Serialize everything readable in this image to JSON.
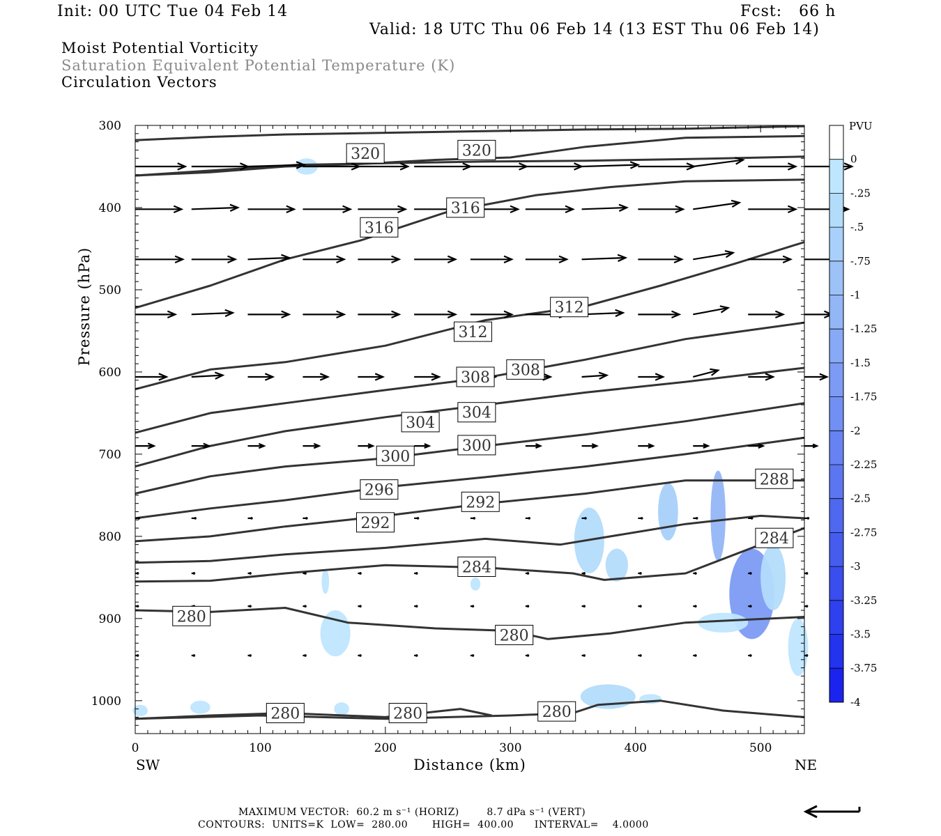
{
  "header": {
    "init": "Init: 00 UTC Tue 04 Feb 14",
    "fcst": "Fcst:   66 h",
    "valid": "Valid: 18 UTC Thu 06 Feb 14 (13 EST Thu 06 Feb 14)",
    "line1": "Moist Potential Vorticity",
    "line2": "Saturation Equivalent Potential Temperature (K)",
    "line3": "Circulation Vectors"
  },
  "footer": {
    "max_vector": "MAXIMUM VECTOR:  60.2 m s⁻¹ (HORIZ)        8.7 dPa s⁻¹ (VERT)",
    "contours": "CONTOURS:  UNITS=K  LOW=  280.00       HIGH=  400.00      INTERVAL=    4.0000"
  },
  "chart_data": {
    "type": "line",
    "title": "",
    "xlabel": "Distance (km)",
    "ylabel": "Pressure (hPa)",
    "xlim": [
      0,
      535
    ],
    "ylim": [
      1040,
      300
    ],
    "x_ticks": [
      0,
      100,
      200,
      300,
      400,
      500
    ],
    "y_ticks": [
      300,
      400,
      500,
      600,
      700,
      800,
      900,
      1000
    ],
    "x_end_labels": {
      "left": "SW",
      "right": "NE"
    },
    "grid": false,
    "colors": {
      "contour": "#333333",
      "vector": "#000000"
    },
    "series": [
      {
        "x": [
          0,
          60,
          120,
          200,
          280,
          360,
          440,
          535
        ],
        "y": [
          318,
          314,
          311,
          309,
          307,
          305,
          304,
          301
        ]
      },
      {
        "x": [
          0,
          60,
          130,
          200,
          280,
          360,
          440,
          535
        ],
        "y": [
          361,
          355,
          348,
          346,
          344,
          343,
          341,
          338
        ]
      },
      {
        "x": [
          0,
          60,
          120,
          180,
          240,
          300,
          360,
          440,
          535
        ],
        "y": [
          361,
          357,
          350,
          347,
          342,
          339,
          326,
          315,
          313
        ]
      },
      {
        "x": [
          0,
          60,
          120,
          180,
          250,
          320,
          380,
          440,
          535
        ],
        "y": [
          522,
          495,
          463,
          440,
          405,
          385,
          375,
          368,
          366
        ]
      },
      {
        "x": [
          0,
          60,
          120,
          200,
          280,
          360,
          420,
          480,
          535
        ],
        "y": [
          621,
          597,
          588,
          568,
          537,
          520,
          495,
          468,
          442
        ]
      },
      {
        "x": [
          0,
          60,
          120,
          200,
          280,
          360,
          440,
          535
        ],
        "y": [
          674,
          650,
          638,
          622,
          607,
          585,
          560,
          540
        ]
      },
      {
        "x": [
          0,
          60,
          120,
          200,
          280,
          360,
          440,
          535
        ],
        "y": [
          715,
          690,
          672,
          655,
          640,
          625,
          612,
          595
        ]
      },
      {
        "x": [
          0,
          60,
          120,
          200,
          280,
          360,
          440,
          535
        ],
        "y": [
          748,
          727,
          715,
          705,
          690,
          676,
          660,
          638
        ]
      },
      {
        "x": [
          0,
          60,
          120,
          200,
          280,
          360,
          440,
          535
        ],
        "y": [
          778,
          766,
          756,
          740,
          728,
          715,
          700,
          680
        ]
      },
      {
        "x": [
          0,
          60,
          120,
          200,
          280,
          360,
          440,
          535
        ],
        "y": [
          806,
          800,
          788,
          775,
          760,
          748,
          732,
          732
        ]
      },
      {
        "x": [
          0,
          60,
          120,
          200,
          280,
          340,
          380,
          440,
          500,
          535
        ],
        "y": [
          832,
          830,
          822,
          814,
          803,
          810,
          800,
          785,
          775,
          778
        ]
      },
      {
        "x": [
          0,
          60,
          120,
          200,
          280,
          350,
          375,
          440,
          500,
          535
        ],
        "y": [
          855,
          854,
          845,
          835,
          838,
          845,
          853,
          845,
          810,
          790
        ]
      },
      {
        "x": [
          0,
          60,
          120,
          170,
          240,
          300,
          330,
          380,
          440,
          535
        ],
        "y": [
          890,
          892,
          887,
          905,
          912,
          915,
          925,
          918,
          905,
          898
        ]
      },
      {
        "x": [
          0,
          60,
          120,
          200,
          260,
          285
        ],
        "y": [
          1022,
          1018,
          1015,
          1020,
          1010,
          1018
        ]
      },
      {
        "x": [
          0,
          100,
          200,
          300,
          350,
          370,
          420,
          470,
          535
        ],
        "y": [
          1022,
          1018,
          1022,
          1018,
          1015,
          1005,
          1000,
          1012,
          1020
        ]
      }
    ],
    "contour_labels": [
      {
        "text": "320",
        "x": 184,
        "y": 334
      },
      {
        "text": "320",
        "x": 273,
        "y": 330
      },
      {
        "text": "316",
        "x": 195,
        "y": 424
      },
      {
        "text": "316",
        "x": 264,
        "y": 400
      },
      {
        "text": "312",
        "x": 270,
        "y": 551
      },
      {
        "text": "312",
        "x": 347,
        "y": 521
      },
      {
        "text": "308",
        "x": 272,
        "y": 606
      },
      {
        "text": "308",
        "x": 312,
        "y": 597
      },
      {
        "text": "304",
        "x": 228,
        "y": 661
      },
      {
        "text": "304",
        "x": 273,
        "y": 649
      },
      {
        "text": "300",
        "x": 208,
        "y": 702
      },
      {
        "text": "300",
        "x": 273,
        "y": 689
      },
      {
        "text": "296",
        "x": 195,
        "y": 743
      },
      {
        "text": "292",
        "x": 192,
        "y": 783
      },
      {
        "text": "292",
        "x": 276,
        "y": 758
      },
      {
        "text": "288",
        "x": 511,
        "y": 730
      },
      {
        "text": "284",
        "x": 273,
        "y": 837
      },
      {
        "text": "284",
        "x": 511,
        "y": 802
      },
      {
        "text": "280",
        "x": 45,
        "y": 897
      },
      {
        "text": "280",
        "x": 303,
        "y": 920
      },
      {
        "text": "280",
        "x": 120,
        "y": 1015
      },
      {
        "text": "280",
        "x": 218,
        "y": 1015
      },
      {
        "text": "280",
        "x": 337,
        "y": 1013
      }
    ],
    "mpv_shading": {
      "legend_label": "PVU",
      "levels": [
        "0",
        "-.25",
        "-.5",
        "-.75",
        "-1",
        "-1.25",
        "-1.5",
        "-1.75",
        "-2",
        "-2.25",
        "-2.5",
        "-2.75",
        "-3",
        "-3.25",
        "-3.5",
        "-3.75",
        "-4"
      ],
      "colors": [
        "#ffffff",
        "#bfe6ff",
        "#b3dcfb",
        "#a8d0fa",
        "#9dc2f8",
        "#93b6f6",
        "#88a9f5",
        "#7d9bf4",
        "#7290f3",
        "#6782f2",
        "#5c76f1",
        "#4f68f0",
        "#455cef",
        "#3a4def",
        "#2f40ee",
        "#2333ee",
        "#1b24ee"
      ],
      "patches": [
        {
          "x": 137,
          "y": 350,
          "rx": 9,
          "ry": 10,
          "level": 1
        },
        {
          "x": 152,
          "y": 855,
          "rx": 3,
          "ry": 15,
          "level": 1
        },
        {
          "x": 160,
          "y": 918,
          "rx": 12,
          "ry": 28,
          "level": 1
        },
        {
          "x": 272,
          "y": 858,
          "rx": 4,
          "ry": 8,
          "level": 1
        },
        {
          "x": 363,
          "y": 805,
          "rx": 12,
          "ry": 40,
          "level": 2
        },
        {
          "x": 385,
          "y": 835,
          "rx": 9,
          "ry": 20,
          "level": 2
        },
        {
          "x": 426,
          "y": 770,
          "rx": 8,
          "ry": 35,
          "level": 3
        },
        {
          "x": 466,
          "y": 775,
          "rx": 6,
          "ry": 55,
          "level": 5
        },
        {
          "x": 493,
          "y": 870,
          "rx": 18,
          "ry": 55,
          "level": 7
        },
        {
          "x": 510,
          "y": 850,
          "rx": 10,
          "ry": 40,
          "level": 2
        },
        {
          "x": 530,
          "y": 935,
          "rx": 8,
          "ry": 35,
          "level": 1
        },
        {
          "x": 470,
          "y": 905,
          "rx": 20,
          "ry": 12,
          "level": 1
        },
        {
          "x": 378,
          "y": 995,
          "rx": 22,
          "ry": 15,
          "level": 2
        },
        {
          "x": 412,
          "y": 998,
          "rx": 9,
          "ry": 6,
          "level": 1
        },
        {
          "x": 52,
          "y": 1008,
          "rx": 8,
          "ry": 8,
          "level": 1
        },
        {
          "x": 4,
          "y": 1012,
          "rx": 6,
          "ry": 7,
          "level": 1
        },
        {
          "x": 165,
          "y": 1010,
          "rx": 6,
          "ry": 8,
          "level": 1
        }
      ]
    },
    "circulation_vectors": {
      "max_horizontal_m_s": 60.2,
      "max_vertical_dPa_s": 8.7,
      "pressure_levels": [
        350,
        402,
        463,
        530,
        606,
        690,
        778,
        845,
        885,
        945
      ],
      "x_positions": [
        0,
        45,
        90,
        134,
        178,
        223,
        268,
        312,
        357,
        402,
        446,
        490,
        535
      ],
      "u_km": [
        [
          40,
          45,
          45,
          45,
          40,
          45,
          45,
          45,
          45,
          45,
          40,
          38,
          38
        ],
        [
          37,
          37,
          37,
          38,
          38,
          38,
          38,
          38,
          36,
          36,
          37,
          38,
          35
        ],
        [
          38,
          35,
          33,
          33,
          33,
          33,
          33,
          33,
          35,
          35,
          32,
          34,
          30
        ],
        [
          32,
          33,
          33,
          33,
          33,
          33,
          33,
          33,
          33,
          33,
          28,
          28,
          22
        ],
        [
          25,
          25,
          20,
          20,
          20,
          20,
          20,
          20,
          20,
          20,
          20,
          20,
          18
        ],
        [
          15,
          14,
          13,
          13,
          12,
          12,
          12,
          12,
          12,
          12,
          12,
          12,
          10
        ],
        [
          3,
          3,
          3,
          3,
          3,
          3,
          3,
          3,
          3,
          3,
          3,
          3,
          3
        ],
        [
          2,
          2,
          2,
          2,
          2,
          2,
          2,
          2,
          2,
          2,
          2,
          2,
          2
        ],
        [
          2,
          2,
          2,
          2,
          2,
          2,
          2,
          2,
          2,
          2,
          2,
          2,
          2
        ],
        [
          2,
          2,
          2,
          2,
          2,
          2,
          2,
          2,
          2,
          2,
          2,
          2,
          2
        ]
      ],
      "w_hPa": [
        [
          0,
          0,
          -2,
          0,
          0,
          0,
          0,
          0,
          -2,
          0,
          -8,
          0,
          0
        ],
        [
          0,
          -2,
          0,
          0,
          0,
          0,
          0,
          0,
          -2,
          0,
          -8,
          0,
          0
        ],
        [
          0,
          0,
          -2,
          0,
          0,
          0,
          0,
          0,
          -2,
          0,
          -8,
          0,
          0
        ],
        [
          0,
          -2,
          0,
          0,
          0,
          0,
          0,
          0,
          -2,
          0,
          -8,
          0,
          0
        ],
        [
          0,
          -2,
          0,
          0,
          0,
          0,
          0,
          0,
          -2,
          0,
          -8,
          0,
          0
        ],
        [
          0,
          0,
          0,
          0,
          0,
          0,
          0,
          0,
          0,
          0,
          0,
          0,
          0
        ],
        [
          0,
          0,
          0,
          0,
          0,
          0,
          0,
          0,
          0,
          0,
          0,
          0,
          0
        ],
        [
          0,
          0,
          0,
          0,
          0,
          0,
          0,
          0,
          0,
          0,
          0,
          0,
          0
        ],
        [
          0,
          0,
          0,
          0,
          0,
          0,
          0,
          0,
          0,
          0,
          0,
          0,
          0
        ],
        [
          0,
          0,
          0,
          0,
          0,
          0,
          0,
          0,
          0,
          0,
          0,
          0,
          0
        ]
      ]
    }
  }
}
